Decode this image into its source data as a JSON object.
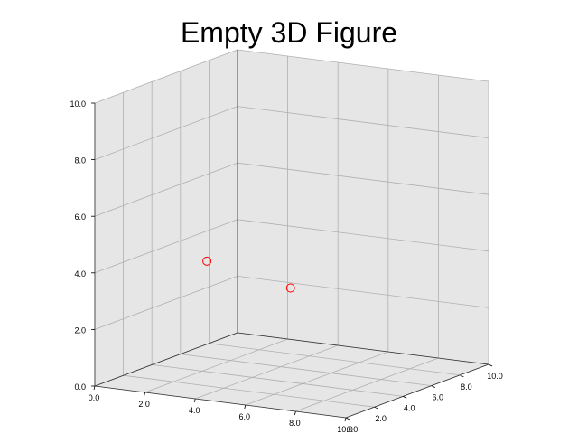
{
  "chart_data": {
    "type": "scatter",
    "title": "Empty 3D Figure",
    "projection": "3d",
    "xlim": [
      0,
      10
    ],
    "ylim": [
      0,
      10
    ],
    "zlim": [
      0,
      10
    ],
    "x_ticks": [
      "0.0",
      "2.0",
      "4.0",
      "6.0",
      "8.0",
      "10.0"
    ],
    "y_ticks": [
      "0.0",
      "2.0",
      "4.0",
      "6.0",
      "8.0",
      "10.0"
    ],
    "z_ticks": [
      "0.0",
      "2.0",
      "4.0",
      "6.0",
      "8.0",
      "10.0"
    ],
    "grid": true,
    "marker": "open-circle",
    "marker_color": "#ff0000",
    "points": [
      {
        "x": 0.6,
        "y": 6.8,
        "z": 3.2
      },
      {
        "x": 4.1,
        "y": 6.5,
        "z": 2.7
      }
    ]
  }
}
